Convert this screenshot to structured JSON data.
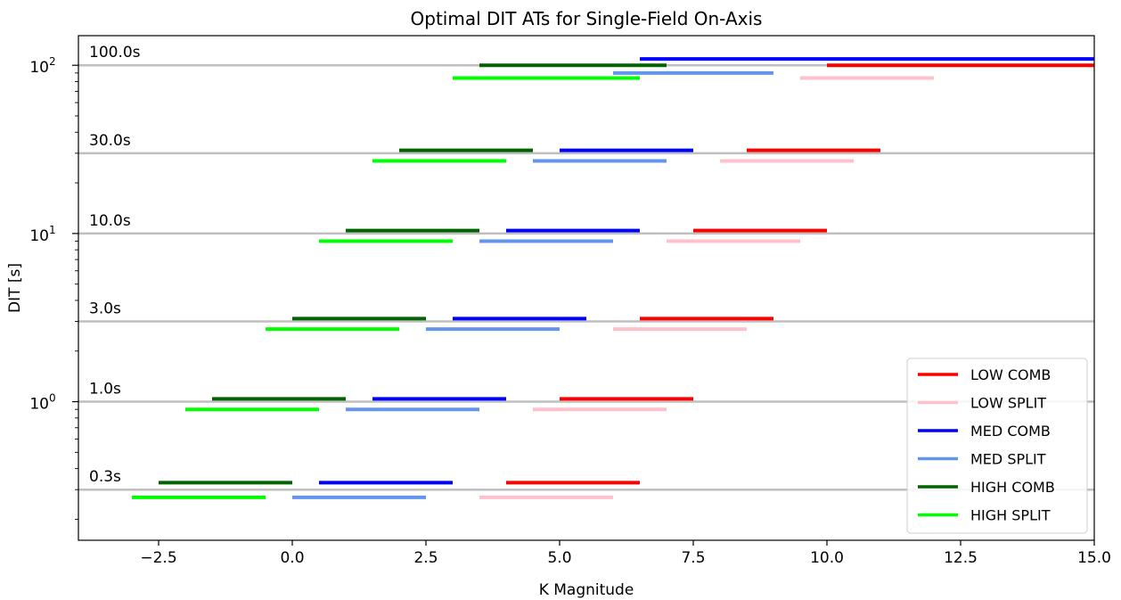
{
  "chart_data": {
    "type": "line",
    "title": "Optimal DIT ATs for Single-Field On-Axis",
    "xlabel": "K Magnitude",
    "ylabel": "DIT [s]",
    "xlim": [
      -4,
      15
    ],
    "ylim": [
      0.15,
      150
    ],
    "yscale": "log",
    "x_ticks": [
      -2.5,
      0.0,
      2.5,
      5.0,
      7.5,
      10.0,
      12.5,
      15.0
    ],
    "x_tick_labels": [
      "−2.5",
      "0.0",
      "2.5",
      "5.0",
      "7.5",
      "10.0",
      "12.5",
      "15.0"
    ],
    "y_ticks": [
      {
        "value": 1,
        "base": "10",
        "exp": "0"
      },
      {
        "value": 10,
        "base": "10",
        "exp": "1"
      },
      {
        "value": 100,
        "base": "10",
        "exp": "2"
      }
    ],
    "dit_levels": [
      {
        "value": 0.3,
        "label": "0.3s"
      },
      {
        "value": 1.0,
        "label": "1.0s"
      },
      {
        "value": 3.0,
        "label": "3.0s"
      },
      {
        "value": 10.0,
        "label": "10.0s"
      },
      {
        "value": 30.0,
        "label": "30.0s"
      },
      {
        "value": 100.0,
        "label": "100.0s"
      }
    ],
    "gridline_color": "#bfbfbf",
    "legend": {
      "position": "lower-right"
    },
    "series": [
      {
        "name": "LOW COMB",
        "color": "#ff0000",
        "segments": [
          {
            "dit": 0.3,
            "y": 0.33,
            "x": [
              4.0,
              6.5
            ]
          },
          {
            "dit": 1.0,
            "y": 1.04,
            "x": [
              5.0,
              7.5
            ]
          },
          {
            "dit": 3.0,
            "y": 3.12,
            "x": [
              6.5,
              9.0
            ]
          },
          {
            "dit": 10.0,
            "y": 10.4,
            "x": [
              7.5,
              10.0
            ]
          },
          {
            "dit": 30.0,
            "y": 31.2,
            "x": [
              8.5,
              11.0
            ]
          },
          {
            "dit": 100.0,
            "y": 100.0,
            "x": [
              10.0,
              15.0
            ]
          }
        ]
      },
      {
        "name": "LOW SPLIT",
        "color": "#ffc0cb",
        "segments": [
          {
            "dit": 0.3,
            "y": 0.27,
            "x": [
              3.5,
              6.0
            ]
          },
          {
            "dit": 1.0,
            "y": 0.9,
            "x": [
              4.5,
              7.0
            ]
          },
          {
            "dit": 3.0,
            "y": 2.7,
            "x": [
              6.0,
              8.5
            ]
          },
          {
            "dit": 10.0,
            "y": 9.0,
            "x": [
              7.0,
              9.5
            ]
          },
          {
            "dit": 30.0,
            "y": 27.0,
            "x": [
              8.0,
              10.5
            ]
          },
          {
            "dit": 100.0,
            "y": 84.0,
            "x": [
              9.5,
              12.0
            ]
          }
        ]
      },
      {
        "name": "MED COMB",
        "color": "#0000ff",
        "segments": [
          {
            "dit": 0.3,
            "y": 0.33,
            "x": [
              0.5,
              3.0
            ]
          },
          {
            "dit": 1.0,
            "y": 1.04,
            "x": [
              1.5,
              4.0
            ]
          },
          {
            "dit": 3.0,
            "y": 3.12,
            "x": [
              3.0,
              5.5
            ]
          },
          {
            "dit": 10.0,
            "y": 10.4,
            "x": [
              4.0,
              6.5
            ]
          },
          {
            "dit": 30.0,
            "y": 31.2,
            "x": [
              5.0,
              7.5
            ]
          },
          {
            "dit": 100.0,
            "y": 109.0,
            "x": [
              6.5,
              15.0
            ]
          }
        ]
      },
      {
        "name": "MED SPLIT",
        "color": "#6495ed",
        "segments": [
          {
            "dit": 0.3,
            "y": 0.27,
            "x": [
              0.0,
              2.5
            ]
          },
          {
            "dit": 1.0,
            "y": 0.9,
            "x": [
              1.0,
              3.5
            ]
          },
          {
            "dit": 3.0,
            "y": 2.7,
            "x": [
              2.5,
              5.0
            ]
          },
          {
            "dit": 10.0,
            "y": 9.0,
            "x": [
              3.5,
              6.0
            ]
          },
          {
            "dit": 30.0,
            "y": 27.0,
            "x": [
              4.5,
              7.0
            ]
          },
          {
            "dit": 100.0,
            "y": 90.0,
            "x": [
              6.0,
              9.0
            ]
          }
        ]
      },
      {
        "name": "HIGH COMB",
        "color": "#006400",
        "segments": [
          {
            "dit": 0.3,
            "y": 0.33,
            "x": [
              -2.5,
              0.0
            ]
          },
          {
            "dit": 1.0,
            "y": 1.04,
            "x": [
              -1.5,
              1.0
            ]
          },
          {
            "dit": 3.0,
            "y": 3.12,
            "x": [
              0.0,
              2.5
            ]
          },
          {
            "dit": 10.0,
            "y": 10.4,
            "x": [
              1.0,
              3.5
            ]
          },
          {
            "dit": 30.0,
            "y": 31.2,
            "x": [
              2.0,
              4.5
            ]
          },
          {
            "dit": 100.0,
            "y": 100.0,
            "x": [
              3.5,
              7.0
            ]
          }
        ]
      },
      {
        "name": "HIGH SPLIT",
        "color": "#00ff00",
        "segments": [
          {
            "dit": 0.3,
            "y": 0.27,
            "x": [
              -3.0,
              -0.5
            ]
          },
          {
            "dit": 1.0,
            "y": 0.9,
            "x": [
              -2.0,
              0.5
            ]
          },
          {
            "dit": 3.0,
            "y": 2.7,
            "x": [
              -0.5,
              2.0
            ]
          },
          {
            "dit": 10.0,
            "y": 9.0,
            "x": [
              0.5,
              3.0
            ]
          },
          {
            "dit": 30.0,
            "y": 27.0,
            "x": [
              1.5,
              4.0
            ]
          },
          {
            "dit": 100.0,
            "y": 84.0,
            "x": [
              3.0,
              6.5
            ]
          }
        ]
      }
    ]
  }
}
